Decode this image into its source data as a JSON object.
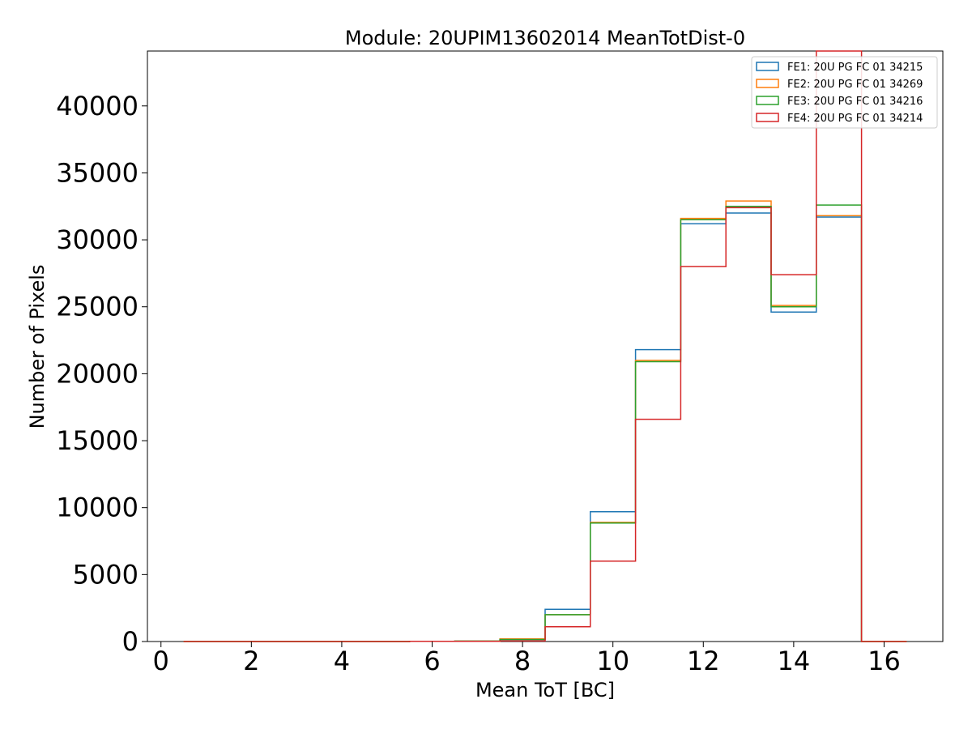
{
  "chart_data": {
    "type": "step",
    "title": "Module: 20UPIM13602014 MeanTotDist-0",
    "xlabel": "Mean ToT [BC]",
    "ylabel": "Number of Pixels",
    "xlim": [
      -0.3,
      17.3
    ],
    "ylim": [
      0,
      44100
    ],
    "xticks": [
      0,
      2,
      4,
      6,
      8,
      10,
      12,
      14,
      16
    ],
    "yticks": [
      0,
      5000,
      10000,
      15000,
      20000,
      25000,
      30000,
      35000,
      40000
    ],
    "grid": false,
    "legend_position": "top-right",
    "bin_edges": [
      0.5,
      1.5,
      2.5,
      3.5,
      4.5,
      5.5,
      6.5,
      7.5,
      8.5,
      9.5,
      10.5,
      11.5,
      12.5,
      13.5,
      14.5,
      15.5,
      16.5
    ],
    "series": [
      {
        "name": "FE1: 20U PG FC 01 34215",
        "color": "#1f77b4",
        "values": [
          0,
          0,
          0,
          0,
          0,
          20,
          30,
          150,
          2400,
          9700,
          21800,
          31200,
          32000,
          24600,
          31700,
          0
        ]
      },
      {
        "name": "FE2: 20U PG FC 01 34269",
        "color": "#ff7f0e",
        "values": [
          0,
          0,
          0,
          0,
          0,
          20,
          30,
          200,
          2000,
          8900,
          21000,
          31600,
          32900,
          25100,
          31800,
          0
        ]
      },
      {
        "name": "FE3: 20U PG FC 01 34216",
        "color": "#2ca02c",
        "values": [
          0,
          0,
          0,
          0,
          0,
          20,
          30,
          150,
          2000,
          8850,
          20900,
          31500,
          32500,
          25000,
          32600,
          0
        ]
      },
      {
        "name": "FE4: 20U PG FC 01 34214",
        "color": "#d62728",
        "values": [
          0,
          0,
          0,
          0,
          0,
          10,
          20,
          50,
          1100,
          6000,
          16600,
          28000,
          32400,
          27400,
          44100,
          0
        ]
      }
    ]
  }
}
